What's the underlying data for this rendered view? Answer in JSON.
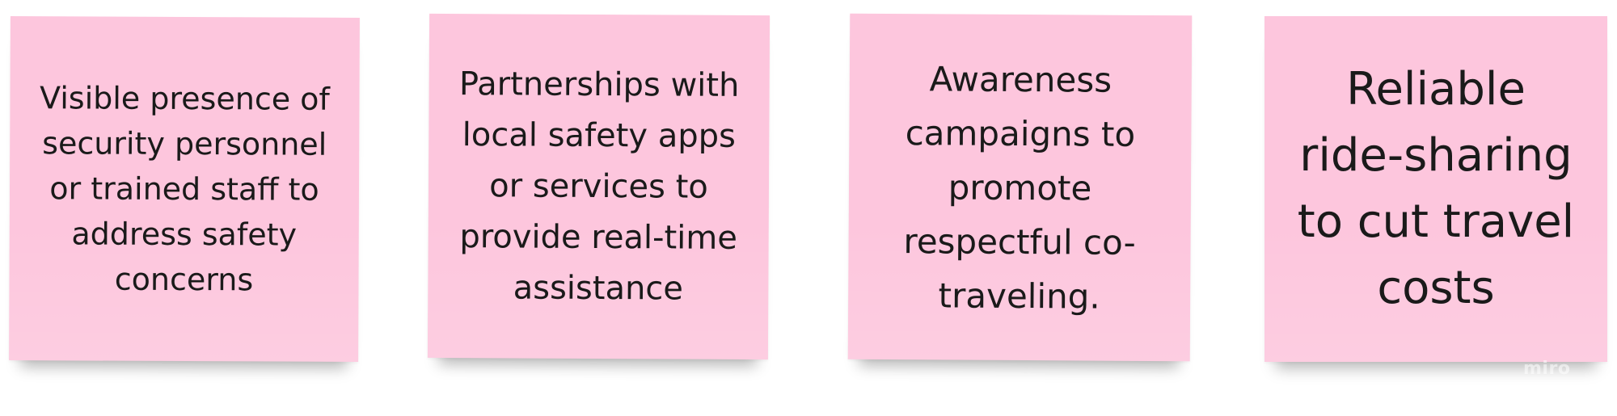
{
  "board": {
    "notes": [
      {
        "text": "Visible presence of security personnel or trained staff to address safety concerns"
      },
      {
        "text": "Partnerships with local safety apps or services to provide real-time assistance"
      },
      {
        "text": "Awareness campaigns to promote respectful co-traveling."
      },
      {
        "text": "Reliable ride-sharing to cut travel costs"
      }
    ],
    "watermark": "miro"
  },
  "colors": {
    "note_background": "#fdc6dd",
    "text": "#1a1a1a"
  }
}
